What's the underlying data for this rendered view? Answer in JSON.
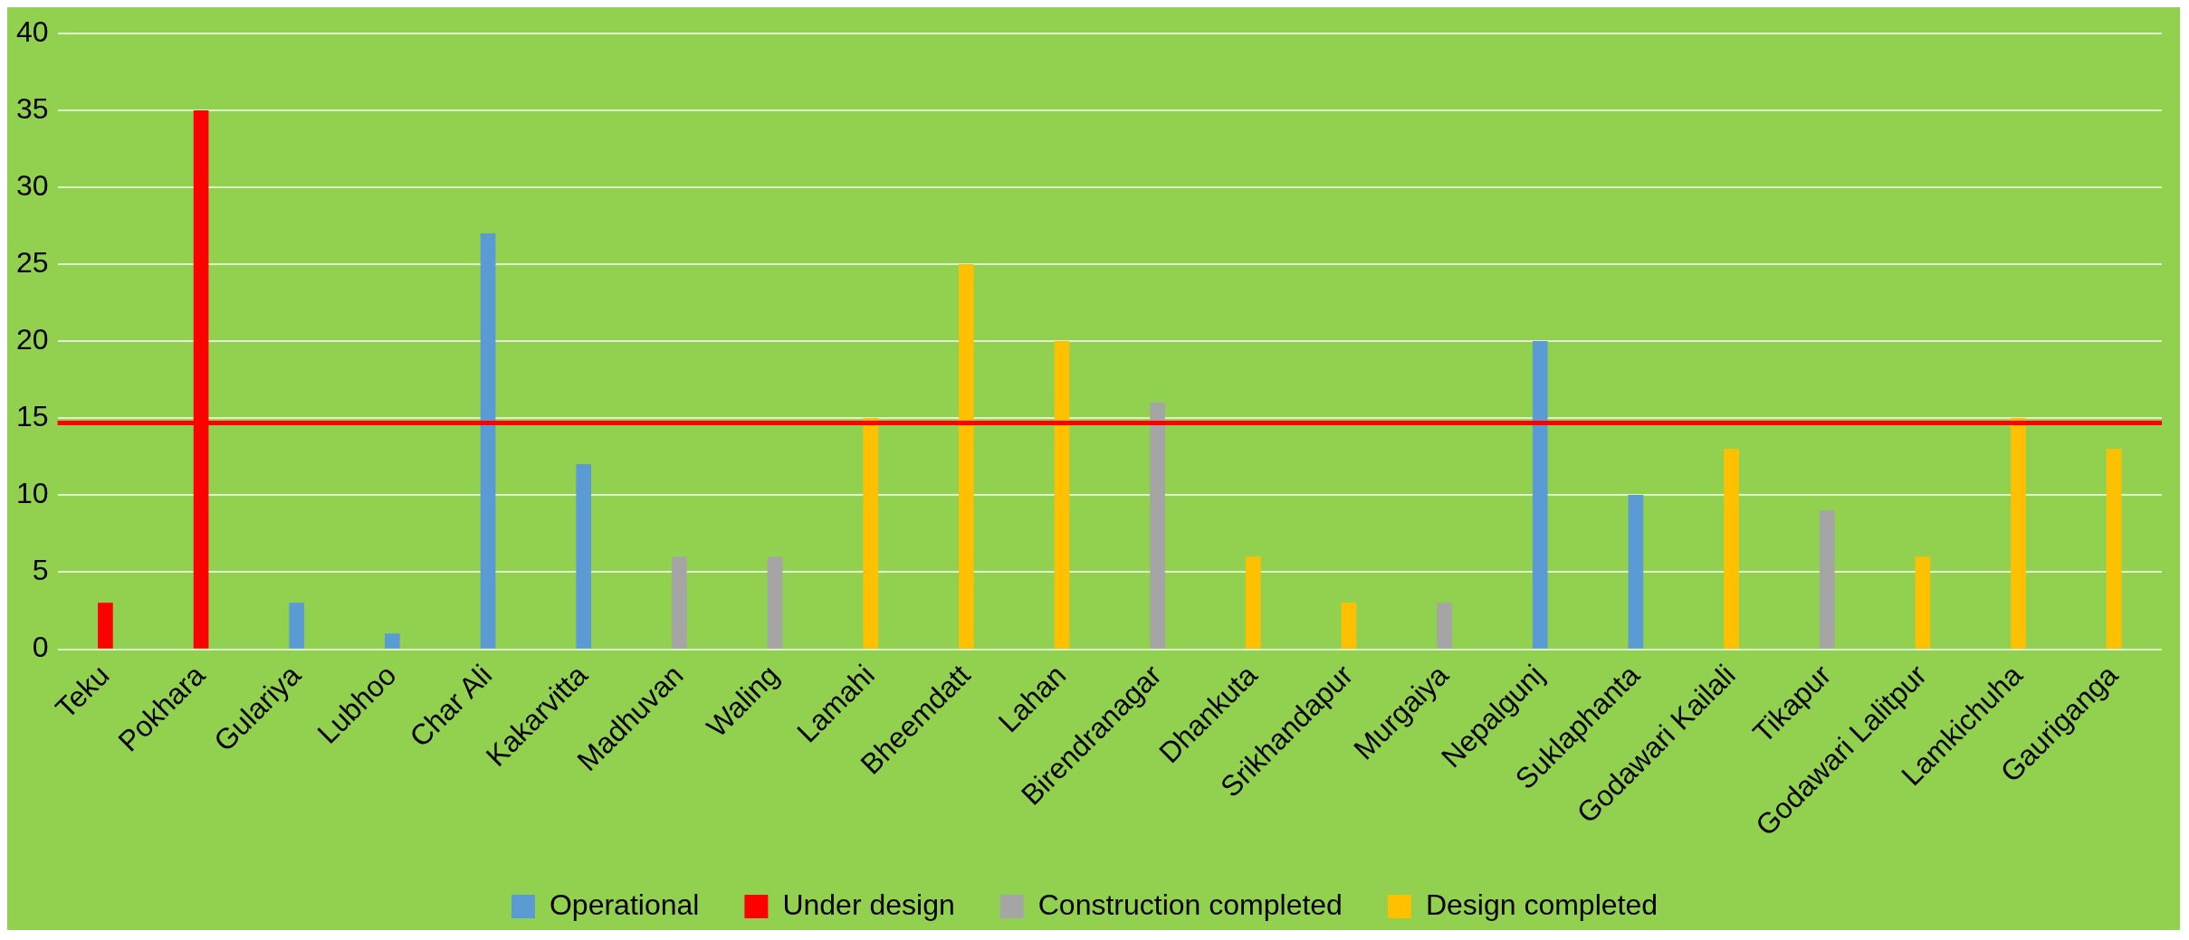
{
  "chart_data": {
    "type": "bar",
    "categories": [
      "Teku",
      "Pokhara",
      "Gulariya",
      "Lubhoo",
      "Char Ali",
      "Kakarvitta",
      "Madhuvan",
      "Waling",
      "Lamahi",
      "Bheemdatt",
      "Lahan",
      "Birendranagar",
      "Dhankuta",
      "Srikhandapur",
      "Murgaiya",
      "Nepalgunj",
      "Suklaphanta",
      "Godawari Kailali",
      "Tikapur",
      "Godawari Lalitpur",
      "Lamkichuha",
      "Gauriganga"
    ],
    "series": [
      {
        "name": "Operational",
        "color": "#5b9bd5",
        "values": [
          null,
          null,
          3,
          1,
          27,
          12,
          null,
          null,
          null,
          null,
          null,
          null,
          null,
          null,
          null,
          20,
          10,
          null,
          null,
          null,
          null,
          null
        ]
      },
      {
        "name": "Under design",
        "color": "#ff0000",
        "values": [
          3,
          35,
          null,
          null,
          null,
          null,
          null,
          null,
          null,
          null,
          null,
          null,
          null,
          null,
          null,
          null,
          null,
          null,
          null,
          null,
          null,
          null
        ]
      },
      {
        "name": "Construction completed",
        "color": "#a5a5a5",
        "values": [
          null,
          null,
          null,
          null,
          null,
          null,
          6,
          6,
          null,
          null,
          null,
          16,
          null,
          null,
          3,
          null,
          null,
          null,
          9,
          null,
          null,
          null
        ]
      },
      {
        "name": "Design completed",
        "color": "#ffc000",
        "values": [
          null,
          null,
          null,
          null,
          null,
          null,
          null,
          null,
          15,
          25,
          20,
          null,
          6,
          3,
          null,
          null,
          null,
          13,
          null,
          6,
          15,
          13
        ]
      }
    ],
    "ylim": [
      0,
      40
    ],
    "yticks": [
      0,
      5,
      10,
      15,
      20,
      25,
      30,
      35,
      40
    ],
    "grid": "y",
    "legend": "bottom",
    "ref_lines": [
      {
        "axis": "y",
        "value": 14.7,
        "color": "#ff0000"
      }
    ]
  }
}
